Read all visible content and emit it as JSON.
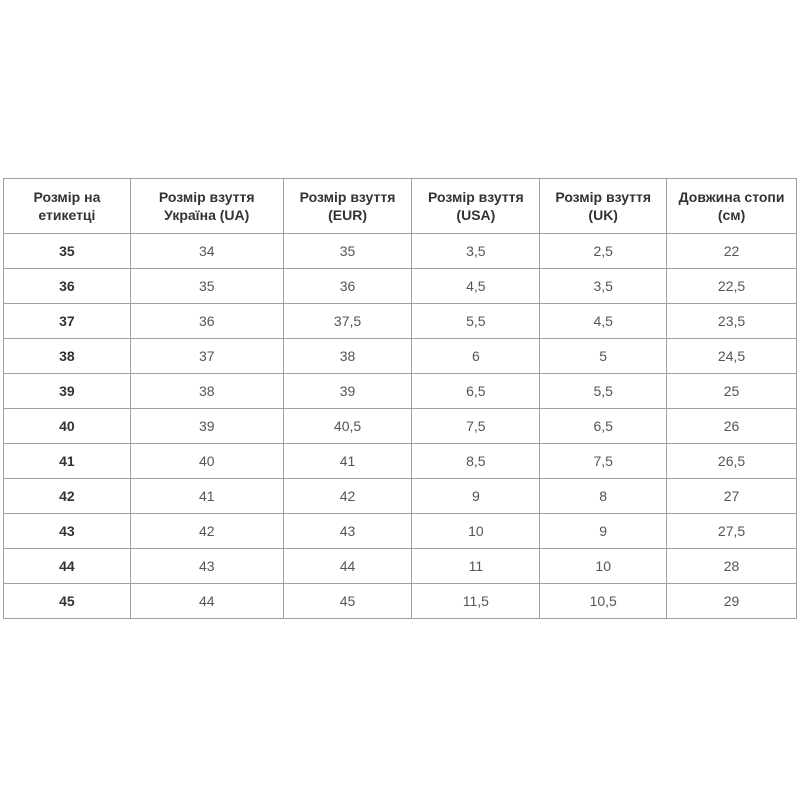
{
  "table": {
    "headers": [
      "Розмір на етикетці",
      "Розмір взуття Україна (UA)",
      "Розмір взуття (EUR)",
      "Розмір взуття (USA)",
      "Розмір взуття (UK)",
      "Довжина стопи (см)"
    ],
    "rows": [
      [
        "35",
        "34",
        "35",
        "3,5",
        "2,5",
        "22"
      ],
      [
        "36",
        "35",
        "36",
        "4,5",
        "3,5",
        "22,5"
      ],
      [
        "37",
        "36",
        "37,5",
        "5,5",
        "4,5",
        "23,5"
      ],
      [
        "38",
        "37",
        "38",
        "6",
        "5",
        "24,5"
      ],
      [
        "39",
        "38",
        "39",
        "6,5",
        "5,5",
        "25"
      ],
      [
        "40",
        "39",
        "40,5",
        "7,5",
        "6,5",
        "26"
      ],
      [
        "41",
        "40",
        "41",
        "8,5",
        "7,5",
        "26,5"
      ],
      [
        "42",
        "41",
        "42",
        "9",
        "8",
        "27"
      ],
      [
        "43",
        "42",
        "43",
        "10",
        "9",
        "27,5"
      ],
      [
        "44",
        "43",
        "44",
        "11",
        "10",
        "28"
      ],
      [
        "45",
        "44",
        "45",
        "11,5",
        "10,5",
        "29"
      ]
    ]
  }
}
